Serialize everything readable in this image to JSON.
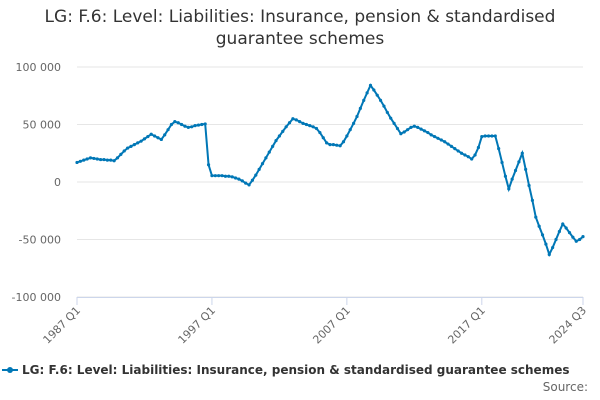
{
  "chart_data": {
    "type": "line",
    "title": "LG: F.6: Level: Liabilities: Insurance, pension & standardised guarantee schemes",
    "xlabel": "",
    "ylabel": "",
    "ylim": [
      -100000,
      100000
    ],
    "y_ticks": [
      100000,
      50000,
      0,
      -50000,
      -100000
    ],
    "y_tick_labels": [
      "100 000",
      "50 000",
      "0",
      "-50 000",
      "-100 000"
    ],
    "x_tick_labels": [
      "1987 Q1",
      "1997 Q1",
      "2007 Q1",
      "2017 Q1",
      "2024 Q3"
    ],
    "x_tick_positions": [
      0,
      40,
      80,
      120,
      150
    ],
    "grid": true,
    "legend_position": "bottom",
    "series_color": "#0077b6",
    "series": [
      {
        "name": "LG: F.6: Level: Liabilities: Insurance, pension & standardised guarantee schemes",
        "points": [
          [
            0,
            17000
          ],
          [
            1,
            18000
          ],
          [
            2,
            19000
          ],
          [
            3,
            20000
          ],
          [
            4,
            21000
          ],
          [
            5,
            20500
          ],
          [
            6,
            20000
          ],
          [
            7,
            19500
          ],
          [
            8,
            19500
          ],
          [
            9,
            19000
          ],
          [
            10,
            19000
          ],
          [
            11,
            18500
          ],
          [
            12,
            21000
          ],
          [
            13,
            24000
          ],
          [
            14,
            27000
          ],
          [
            15,
            29500
          ],
          [
            16,
            31000
          ],
          [
            17,
            32500
          ],
          [
            18,
            34000
          ],
          [
            19,
            35500
          ],
          [
            20,
            37500
          ],
          [
            21,
            39500
          ],
          [
            22,
            41500
          ],
          [
            23,
            40000
          ],
          [
            24,
            38500
          ],
          [
            25,
            37000
          ],
          [
            26,
            41000
          ],
          [
            27,
            45500
          ],
          [
            28,
            50000
          ],
          [
            29,
            52500
          ],
          [
            30,
            51500
          ],
          [
            31,
            50000
          ],
          [
            32,
            48500
          ],
          [
            33,
            47500
          ],
          [
            34,
            48000
          ],
          [
            35,
            49000
          ],
          [
            36,
            49500
          ],
          [
            37,
            50000
          ],
          [
            38,
            50500
          ],
          [
            39,
            15000
          ],
          [
            40,
            5500
          ],
          [
            41,
            5500
          ],
          [
            42,
            5500
          ],
          [
            43,
            5500
          ],
          [
            44,
            5000
          ],
          [
            45,
            5000
          ],
          [
            46,
            4500
          ],
          [
            47,
            3500
          ],
          [
            48,
            2500
          ],
          [
            49,
            1000
          ],
          [
            50,
            -1000
          ],
          [
            51,
            -2500
          ],
          [
            52,
            1500
          ],
          [
            53,
            6000
          ],
          [
            54,
            11000
          ],
          [
            55,
            16000
          ],
          [
            56,
            21000
          ],
          [
            57,
            26000
          ],
          [
            58,
            31000
          ],
          [
            59,
            36000
          ],
          [
            60,
            40000
          ],
          [
            61,
            44000
          ],
          [
            62,
            48000
          ],
          [
            63,
            51500
          ],
          [
            64,
            55000
          ],
          [
            65,
            54000
          ],
          [
            66,
            52500
          ],
          [
            67,
            51000
          ],
          [
            68,
            50000
          ],
          [
            69,
            49000
          ],
          [
            70,
            48000
          ],
          [
            71,
            46500
          ],
          [
            72,
            43000
          ],
          [
            73,
            38500
          ],
          [
            74,
            34000
          ],
          [
            75,
            32500
          ],
          [
            76,
            32500
          ],
          [
            77,
            32000
          ],
          [
            78,
            31500
          ],
          [
            79,
            35000
          ],
          [
            80,
            40000
          ],
          [
            81,
            45500
          ],
          [
            82,
            51000
          ],
          [
            83,
            57000
          ],
          [
            84,
            64000
          ],
          [
            85,
            71000
          ],
          [
            86,
            77500
          ],
          [
            87,
            84000
          ],
          [
            88,
            80000
          ],
          [
            89,
            75500
          ],
          [
            90,
            71000
          ],
          [
            91,
            66000
          ],
          [
            92,
            60500
          ],
          [
            93,
            55500
          ],
          [
            94,
            51000
          ],
          [
            95,
            46500
          ],
          [
            96,
            42000
          ],
          [
            97,
            43500
          ],
          [
            98,
            45500
          ],
          [
            99,
            47500
          ],
          [
            100,
            48500
          ],
          [
            101,
            47500
          ],
          [
            102,
            46000
          ],
          [
            103,
            44500
          ],
          [
            104,
            43000
          ],
          [
            105,
            41000
          ],
          [
            106,
            39500
          ],
          [
            107,
            38000
          ],
          [
            108,
            36500
          ],
          [
            109,
            35000
          ],
          [
            110,
            33000
          ],
          [
            111,
            31000
          ],
          [
            112,
            29000
          ],
          [
            113,
            27000
          ],
          [
            114,
            25000
          ],
          [
            115,
            23500
          ],
          [
            116,
            22000
          ],
          [
            117,
            20000
          ],
          [
            118,
            23500
          ],
          [
            119,
            30000
          ],
          [
            120,
            39500
          ],
          [
            121,
            40000
          ],
          [
            122,
            40000
          ],
          [
            123,
            40000
          ],
          [
            124,
            40000
          ],
          [
            125,
            29000
          ],
          [
            126,
            17000
          ],
          [
            127,
            5000
          ],
          [
            128,
            -6000
          ],
          [
            129,
            2500
          ],
          [
            130,
            10000
          ],
          [
            131,
            17500
          ],
          [
            132,
            25000
          ],
          [
            133,
            11000
          ],
          [
            134,
            -3000
          ],
          [
            135,
            -16000
          ],
          [
            136,
            -30500
          ],
          [
            137,
            -38500
          ],
          [
            138,
            -46000
          ],
          [
            139,
            -54000
          ],
          [
            140,
            -63000
          ],
          [
            141,
            -57000
          ],
          [
            142,
            -50000
          ],
          [
            143,
            -43000
          ],
          [
            144,
            -36500
          ],
          [
            145,
            -40000
          ],
          [
            146,
            -44000
          ],
          [
            147,
            -48000
          ],
          [
            148,
            -51500
          ],
          [
            149,
            -50000
          ],
          [
            150,
            -47500
          ]
        ]
      }
    ]
  },
  "source_label": "Source:"
}
